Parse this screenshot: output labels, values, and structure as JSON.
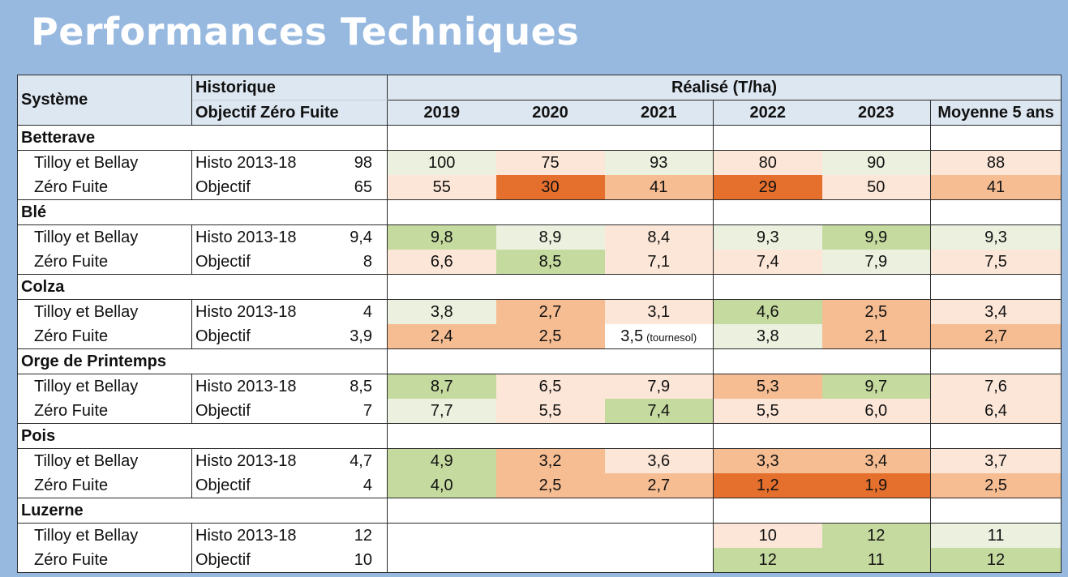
{
  "title": "Performances Techniques",
  "header": {
    "systeme": "Système",
    "historique": "Historique",
    "objectif": "Objectif Zéro Fuite",
    "realise": "Réalisé (T/ha)",
    "years": [
      "2019",
      "2020",
      "2021",
      "2022",
      "2023",
      "Moyenne 5 ans"
    ]
  },
  "palette": {
    "dark_orange": "#e5702e",
    "orange": "#f6bd93",
    "light_orange": "#fce6d8",
    "light_green": "#ebf1de",
    "green": "#c5da9f",
    "white": "#ffffff"
  },
  "crops": [
    {
      "name": "Betterave",
      "rows": [
        {
          "label": "Tilloy et Bellay",
          "ref": "Histo 2013-18",
          "refval": "98",
          "values": [
            "100",
            "75",
            "93",
            "80",
            "90",
            "88"
          ],
          "notes": [
            "",
            "",
            "",
            "",
            "",
            ""
          ],
          "colors": [
            "light_green",
            "light_orange",
            "light_green",
            "light_orange",
            "light_green",
            "light_orange"
          ]
        },
        {
          "label": "Zéro Fuite",
          "ref": "Objectif",
          "refval": "65",
          "values": [
            "55",
            "30",
            "41",
            "29",
            "50",
            "41"
          ],
          "notes": [
            "",
            "",
            "",
            "",
            "",
            ""
          ],
          "colors": [
            "light_orange",
            "dark_orange",
            "orange",
            "dark_orange",
            "light_orange",
            "orange"
          ]
        }
      ]
    },
    {
      "name": "Blé",
      "rows": [
        {
          "label": "Tilloy et Bellay",
          "ref": "Histo 2013-18",
          "refval": "9,4",
          "values": [
            "9,8",
            "8,9",
            "8,4",
            "9,3",
            "9,9",
            "9,3"
          ],
          "notes": [
            "",
            "",
            "",
            "",
            "",
            ""
          ],
          "colors": [
            "green",
            "light_green",
            "light_orange",
            "light_green",
            "green",
            "light_green"
          ]
        },
        {
          "label": "Zéro Fuite",
          "ref": "Objectif",
          "refval": "8",
          "values": [
            "6,6",
            "8,5",
            "7,1",
            "7,4",
            "7,9",
            "7,5"
          ],
          "notes": [
            "",
            "",
            "",
            "",
            "",
            ""
          ],
          "colors": [
            "light_orange",
            "green",
            "light_orange",
            "light_orange",
            "light_green",
            "light_orange"
          ]
        }
      ]
    },
    {
      "name": "Colza",
      "rows": [
        {
          "label": "Tilloy et Bellay",
          "ref": "Histo 2013-18",
          "refval": "4",
          "values": [
            "3,8",
            "2,7",
            "3,1",
            "4,6",
            "2,5",
            "3,4"
          ],
          "notes": [
            "",
            "",
            "",
            "",
            "",
            ""
          ],
          "colors": [
            "light_green",
            "orange",
            "light_orange",
            "green",
            "orange",
            "light_orange"
          ]
        },
        {
          "label": "Zéro Fuite",
          "ref": "Objectif",
          "refval": "3,9",
          "values": [
            "2,4",
            "2,5",
            "3,5",
            "3,8",
            "2,1",
            "2,7"
          ],
          "notes": [
            "",
            "",
            "(tournesol)",
            "",
            "",
            ""
          ],
          "colors": [
            "orange",
            "orange",
            "white",
            "light_green",
            "orange",
            "orange"
          ]
        }
      ]
    },
    {
      "name": "Orge de Printemps",
      "rows": [
        {
          "label": "Tilloy et Bellay",
          "ref": "Histo 2013-18",
          "refval": "8,5",
          "values": [
            "8,7",
            "6,5",
            "7,9",
            "5,3",
            "9,7",
            "7,6"
          ],
          "notes": [
            "",
            "",
            "",
            "",
            "",
            ""
          ],
          "colors": [
            "green",
            "light_orange",
            "light_orange",
            "orange",
            "green",
            "light_orange"
          ]
        },
        {
          "label": "Zéro Fuite",
          "ref": "Objectif",
          "refval": "7",
          "values": [
            "7,7",
            "5,5",
            "7,4",
            "5,5",
            "6,0",
            "6,4"
          ],
          "notes": [
            "",
            "",
            "",
            "",
            "",
            ""
          ],
          "colors": [
            "light_green",
            "light_orange",
            "green",
            "light_orange",
            "light_orange",
            "light_orange"
          ]
        }
      ]
    },
    {
      "name": "Pois",
      "rows": [
        {
          "label": "Tilloy et Bellay",
          "ref": "Histo 2013-18",
          "refval": "4,7",
          "values": [
            "4,9",
            "3,2",
            "3,6",
            "3,3",
            "3,4",
            "3,7"
          ],
          "notes": [
            "",
            "",
            "",
            "",
            "",
            ""
          ],
          "colors": [
            "green",
            "orange",
            "light_orange",
            "orange",
            "orange",
            "light_orange"
          ]
        },
        {
          "label": "Zéro Fuite",
          "ref": "Objectif",
          "refval": "4",
          "values": [
            "4,0",
            "2,5",
            "2,7",
            "1,2",
            "1,9",
            "2,5"
          ],
          "notes": [
            "",
            "",
            "",
            "",
            "",
            ""
          ],
          "colors": [
            "green",
            "orange",
            "orange",
            "dark_orange",
            "dark_orange",
            "orange"
          ]
        }
      ]
    },
    {
      "name": "Luzerne",
      "rows": [
        {
          "label": "Tilloy et Bellay",
          "ref": "Histo 2013-18",
          "refval": "12",
          "values": [
            "",
            "",
            "",
            "10",
            "12",
            "11"
          ],
          "notes": [
            "",
            "",
            "",
            "",
            "",
            ""
          ],
          "colors": [
            "white",
            "white",
            "white",
            "light_orange",
            "green",
            "light_green"
          ]
        },
        {
          "label": "Zéro Fuite",
          "ref": "Objectif",
          "refval": "10",
          "values": [
            "",
            "",
            "",
            "12",
            "11",
            "12"
          ],
          "notes": [
            "",
            "",
            "",
            "",
            "",
            ""
          ],
          "colors": [
            "white",
            "white",
            "white",
            "green",
            "green",
            "green"
          ]
        }
      ]
    }
  ]
}
